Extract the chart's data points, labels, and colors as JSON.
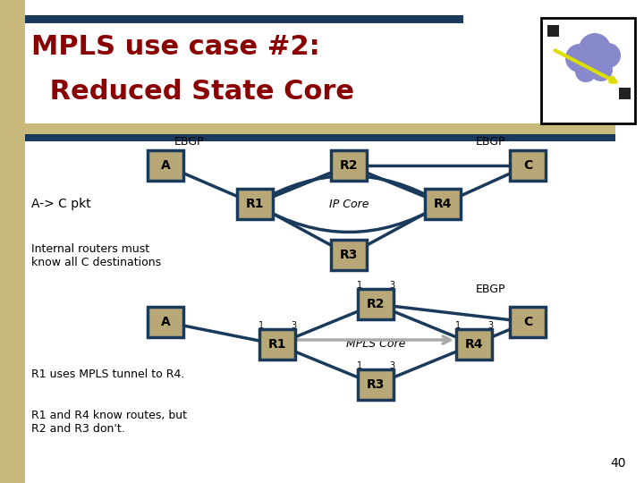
{
  "title_line1": "MPLS use case #2:",
  "title_line2": " Reduced State Core",
  "bg_color": "#ffffff",
  "title_color": "#8B0000",
  "node_fill": "#b8a878",
  "node_edge": "#1a3a5c",
  "line_color": "#1a3a5c",
  "text_color": "#000000",
  "header_bar_color": "#1a3a5c",
  "tan_bar_color": "#c8b87a",
  "page_num": "40",
  "left_stripe_color": "#c8b87a"
}
